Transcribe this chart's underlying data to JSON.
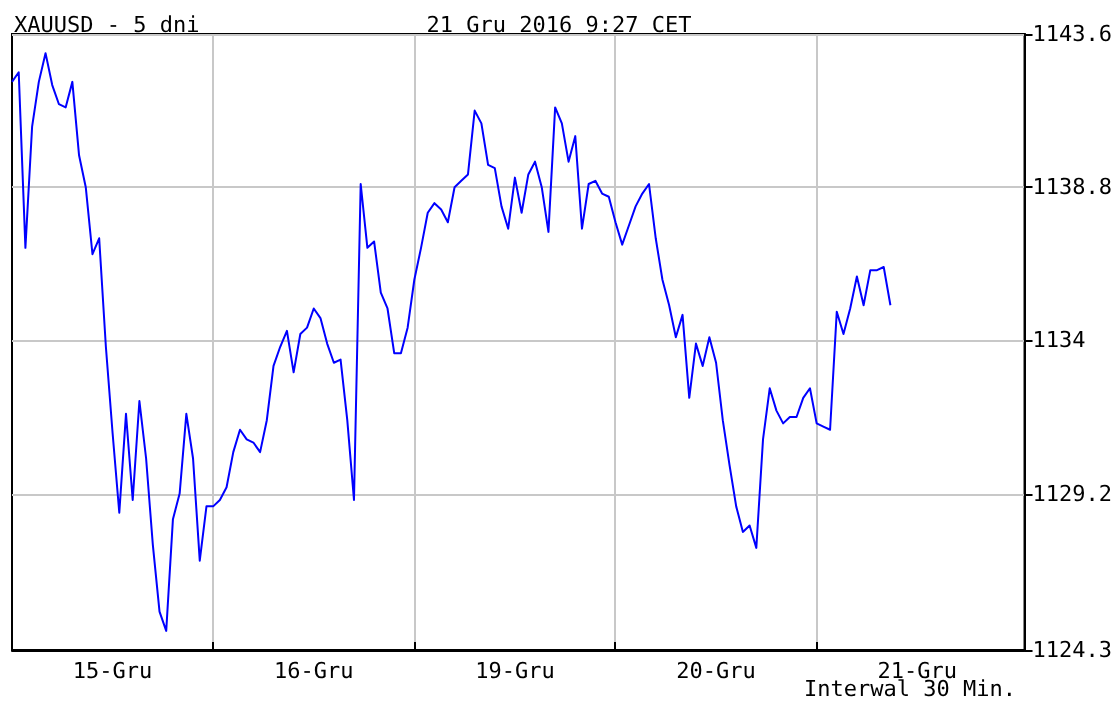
{
  "chart_data": {
    "type": "line",
    "title": "XAUUSD - 5 dni",
    "subtitle": "21 Gru 2016 9:27 CET",
    "annotations": [
      "Interwal 30 Min."
    ],
    "categories": [
      null,
      null,
      null,
      null,
      null,
      null,
      null,
      null,
      null,
      null,
      null,
      null,
      null,
      null,
      null,
      "15-Gru",
      null,
      null,
      null,
      null,
      null,
      null,
      null,
      null,
      null,
      null,
      null,
      null,
      null,
      null,
      null,
      null,
      null,
      null,
      null,
      null,
      null,
      null,
      null,
      null,
      null,
      null,
      null,
      null,
      null,
      "16-Gru",
      null,
      null,
      null,
      null,
      null,
      null,
      null,
      null,
      null,
      null,
      null,
      null,
      null,
      null,
      null,
      null,
      null,
      null,
      null,
      null,
      null,
      null,
      null,
      null,
      null,
      null,
      null,
      null,
      null,
      "19-Gru",
      null,
      null,
      null,
      null,
      null,
      null,
      null,
      null,
      null,
      null,
      null,
      null,
      null,
      null,
      null,
      null,
      null,
      null,
      null,
      null,
      null,
      null,
      null,
      null,
      null,
      null,
      null,
      null,
      null,
      "20-Gru",
      null,
      null,
      null,
      null,
      null,
      null,
      null,
      null,
      null,
      null,
      null,
      null,
      null,
      null,
      null,
      null,
      null,
      null,
      null,
      null,
      null,
      null,
      null,
      null,
      null,
      null,
      null,
      null,
      null,
      "21-Gru",
      null,
      null,
      null,
      null,
      null,
      null,
      null,
      null,
      null,
      null,
      null,
      null,
      null,
      null,
      null,
      null
    ],
    "ylim": [
      1124.3,
      1143.6
    ],
    "yticks": [
      1124.3,
      1129.2,
      1134.0,
      1138.8,
      1143.6
    ],
    "grid": true,
    "marker": "none",
    "line_style": "solid",
    "series": [
      {
        "color": "#0000ff",
        "values": [
          1142.1,
          1142.4,
          1136.9,
          1140.7,
          1142.1,
          1143.0,
          1142.0,
          1141.4,
          1141.3,
          1142.1,
          1139.8,
          1138.8,
          1136.7,
          1137.2,
          1133.8,
          1131.1,
          1128.6,
          1131.7,
          1129.0,
          1132.1,
          1130.3,
          1127.6,
          1125.5,
          1124.9,
          1128.4,
          1129.2,
          1131.7,
          1130.3,
          1127.1,
          1128.8,
          1128.8,
          1129.0,
          1129.4,
          1130.5,
          1131.2,
          1130.9,
          1130.8,
          1130.5,
          1131.5,
          1133.2,
          1133.8,
          1134.3,
          1133.0,
          1134.2,
          1134.4,
          1135.0,
          1134.7,
          1133.9,
          1133.3,
          1133.4,
          1131.5,
          1129.0,
          1138.9,
          1136.9,
          1137.1,
          1135.5,
          1135.0,
          1133.6,
          1133.6,
          1134.4,
          1135.9,
          1136.9,
          1138.0,
          1138.3,
          1138.1,
          1137.7,
          1138.8,
          1139.0,
          1139.2,
          1141.2,
          1140.8,
          1139.5,
          1139.4,
          1138.2,
          1137.5,
          1139.1,
          1138.0,
          1139.2,
          1139.6,
          1138.8,
          1137.4,
          1141.3,
          1140.8,
          1139.6,
          1140.4,
          1137.5,
          1138.9,
          1139.0,
          1138.6,
          1138.5,
          1137.7,
          1137.0,
          1137.6,
          1138.2,
          1138.6,
          1138.9,
          1137.2,
          1135.9,
          1135.1,
          1134.1,
          1134.8,
          1132.2,
          1133.9,
          1133.2,
          1134.1,
          1133.3,
          1131.5,
          1130.1,
          1128.8,
          1128.0,
          1128.2,
          1127.5,
          1130.9,
          1132.5,
          1131.8,
          1131.4,
          1131.6,
          1131.6,
          1132.2,
          1132.5,
          1131.4,
          1131.3,
          1131.2,
          1134.9,
          1134.2,
          1135.0,
          1136.0,
          1135.1,
          1136.2,
          1136.2,
          1136.3,
          1135.1,
          null,
          null,
          null,
          null,
          null,
          null,
          null,
          null,
          null,
          null,
          null,
          null,
          null,
          null,
          null,
          null,
          null,
          null,
          null,
          null
        ]
      }
    ]
  }
}
